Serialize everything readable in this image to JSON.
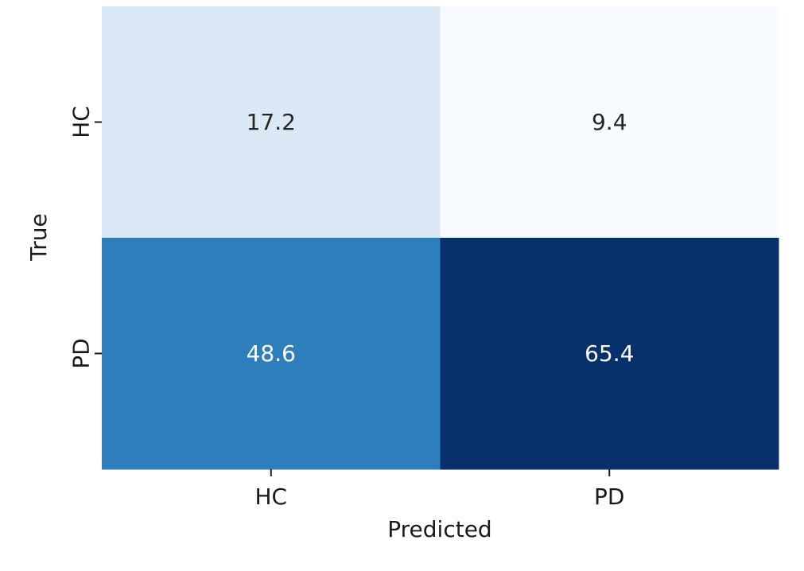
{
  "chart_data": {
    "type": "heatmap",
    "title": "",
    "xlabel": "Predicted",
    "ylabel": "True",
    "x_categories": [
      "HC",
      "PD"
    ],
    "y_categories": [
      "HC",
      "PD"
    ],
    "values": [
      [
        17.2,
        9.4
      ],
      [
        48.6,
        65.4
      ]
    ],
    "colormap": "Blues",
    "vmin": 9.4,
    "vmax": 65.4,
    "colorbar": false,
    "grid": false
  }
}
